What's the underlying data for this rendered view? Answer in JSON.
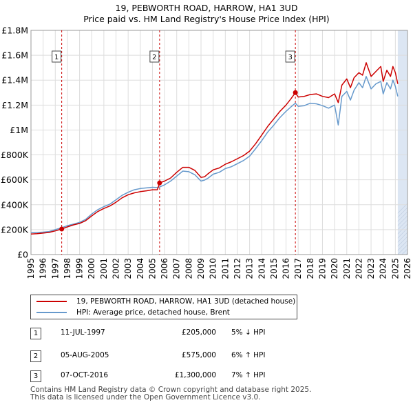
{
  "title_line1": "19, PEBWORTH ROAD, HARROW, HA1 3UD",
  "title_line2": "Price paid vs. HM Land Registry's House Price Index (HPI)",
  "colors": {
    "price": "#cc0000",
    "hpi": "#6699cc",
    "band": "#dce6f3",
    "marker_line": "#cc0000",
    "grid": "#dddddd"
  },
  "legend": {
    "price_label": "19, PEBWORTH ROAD, HARROW, HA1 3UD (detached house)",
    "hpi_label": "HPI: Average price, detached house, Brent"
  },
  "sales": [
    {
      "num": "1",
      "date": "11-JUL-1997",
      "price": "£205,000",
      "hpi": "5% ↓ HPI"
    },
    {
      "num": "2",
      "date": "05-AUG-2005",
      "price": "£575,000",
      "hpi": "6% ↑ HPI"
    },
    {
      "num": "3",
      "date": "07-OCT-2016",
      "price": "£1,300,000",
      "hpi": "7% ↑ HPI"
    }
  ],
  "footer_line1": "Contains HM Land Registry data © Crown copyright and database right 2025.",
  "footer_line2": "This data is licensed under the Open Government Licence v3.0.",
  "chart_data": {
    "type": "line",
    "title": "19, PEBWORTH ROAD, HARROW, HA1 3UD",
    "subtitle": "Price paid vs. HM Land Registry's House Price Index (HPI)",
    "xlabel": "",
    "ylabel": "",
    "xlim": [
      1995,
      2026
    ],
    "ylim": [
      0,
      1800000
    ],
    "x_ticks": [
      1995,
      1996,
      1997,
      1998,
      1999,
      2000,
      2001,
      2002,
      2003,
      2004,
      2005,
      2006,
      2007,
      2008,
      2009,
      2010,
      2011,
      2012,
      2013,
      2014,
      2015,
      2016,
      2017,
      2018,
      2019,
      2020,
      2021,
      2022,
      2023,
      2024,
      2025,
      2026
    ],
    "y_ticks": [
      0,
      200000,
      400000,
      600000,
      800000,
      1000000,
      1200000,
      1400000,
      1600000,
      1800000
    ],
    "y_tick_labels": [
      "£0",
      "£200K",
      "£400K",
      "£600K",
      "£800K",
      "£1M",
      "£1.2M",
      "£1.4M",
      "£1.6M",
      "£1.8M"
    ],
    "grid": true,
    "future_band": [
      2025.2,
      2026
    ],
    "sale_markers": [
      {
        "label": "1",
        "x": 1997.53,
        "y": 205000
      },
      {
        "label": "2",
        "x": 2005.59,
        "y": 575000
      },
      {
        "label": "3",
        "x": 2016.77,
        "y": 1300000
      }
    ],
    "series": [
      {
        "name": "19, PEBWORTH ROAD, HARROW, HA1 3UD (detached house)",
        "x": [
          1995.0,
          1995.5,
          1996.0,
          1996.5,
          1997.0,
          1997.53,
          1998.0,
          1998.5,
          1999.0,
          1999.5,
          2000.0,
          2000.5,
          2001.0,
          2001.5,
          2002.0,
          2002.5,
          2003.0,
          2003.5,
          2004.0,
          2004.5,
          2005.0,
          2005.4,
          2005.59,
          2006.0,
          2006.5,
          2007.0,
          2007.5,
          2008.0,
          2008.5,
          2009.0,
          2009.3,
          2009.6,
          2010.0,
          2010.5,
          2011.0,
          2011.5,
          2012.0,
          2012.5,
          2013.0,
          2013.5,
          2014.0,
          2014.5,
          2015.0,
          2015.5,
          2016.0,
          2016.4,
          2016.77,
          2017.0,
          2017.5,
          2018.0,
          2018.5,
          2019.0,
          2019.5,
          2020.0,
          2020.3,
          2020.6,
          2021.0,
          2021.3,
          2021.6,
          2022.0,
          2022.3,
          2022.6,
          2023.0,
          2023.4,
          2023.8,
          2024.0,
          2024.3,
          2024.6,
          2024.8,
          2025.0,
          2025.2
        ],
        "y": [
          165000,
          168000,
          172000,
          178000,
          190000,
          205000,
          222000,
          238000,
          250000,
          272000,
          310000,
          345000,
          370000,
          390000,
          420000,
          455000,
          480000,
          495000,
          505000,
          512000,
          520000,
          520000,
          575000,
          590000,
          615000,
          660000,
          700000,
          700000,
          675000,
          620000,
          625000,
          650000,
          680000,
          695000,
          725000,
          745000,
          770000,
          795000,
          830000,
          890000,
          960000,
          1030000,
          1090000,
          1150000,
          1200000,
          1250000,
          1300000,
          1265000,
          1270000,
          1285000,
          1290000,
          1270000,
          1260000,
          1290000,
          1220000,
          1360000,
          1410000,
          1340000,
          1420000,
          1460000,
          1440000,
          1540000,
          1430000,
          1470000,
          1510000,
          1390000,
          1480000,
          1430000,
          1510000,
          1460000,
          1370000
        ]
      },
      {
        "name": "HPI: Average price, detached house, Brent",
        "x": [
          1995.0,
          1995.5,
          1996.0,
          1996.5,
          1997.0,
          1997.53,
          1998.0,
          1998.5,
          1999.0,
          1999.5,
          2000.0,
          2000.5,
          2001.0,
          2001.5,
          2002.0,
          2002.5,
          2003.0,
          2003.5,
          2004.0,
          2004.5,
          2005.0,
          2005.4,
          2005.59,
          2006.0,
          2006.5,
          2007.0,
          2007.5,
          2008.0,
          2008.5,
          2009.0,
          2009.3,
          2009.6,
          2010.0,
          2010.5,
          2011.0,
          2011.5,
          2012.0,
          2012.5,
          2013.0,
          2013.5,
          2014.0,
          2014.5,
          2015.0,
          2015.5,
          2016.0,
          2016.4,
          2016.77,
          2017.0,
          2017.5,
          2018.0,
          2018.5,
          2019.0,
          2019.5,
          2020.0,
          2020.3,
          2020.6,
          2021.0,
          2021.3,
          2021.6,
          2022.0,
          2022.3,
          2022.6,
          2023.0,
          2023.4,
          2023.8,
          2024.0,
          2024.3,
          2024.6,
          2024.8,
          2025.0,
          2025.2
        ],
        "y": [
          175000,
          177000,
          180000,
          185000,
          200000,
          215000,
          232000,
          245000,
          258000,
          282000,
          325000,
          360000,
          385000,
          405000,
          440000,
          475000,
          500000,
          520000,
          530000,
          535000,
          540000,
          538000,
          543000,
          560000,
          590000,
          630000,
          670000,
          665000,
          640000,
          590000,
          598000,
          615000,
          645000,
          660000,
          690000,
          705000,
          730000,
          755000,
          790000,
          850000,
          915000,
          985000,
          1040000,
          1100000,
          1150000,
          1185000,
          1215000,
          1190000,
          1195000,
          1215000,
          1210000,
          1195000,
          1175000,
          1200000,
          1040000,
          1270000,
          1310000,
          1240000,
          1320000,
          1380000,
          1340000,
          1430000,
          1330000,
          1370000,
          1390000,
          1290000,
          1380000,
          1330000,
          1400000,
          1350000,
          1270000
        ]
      }
    ]
  }
}
